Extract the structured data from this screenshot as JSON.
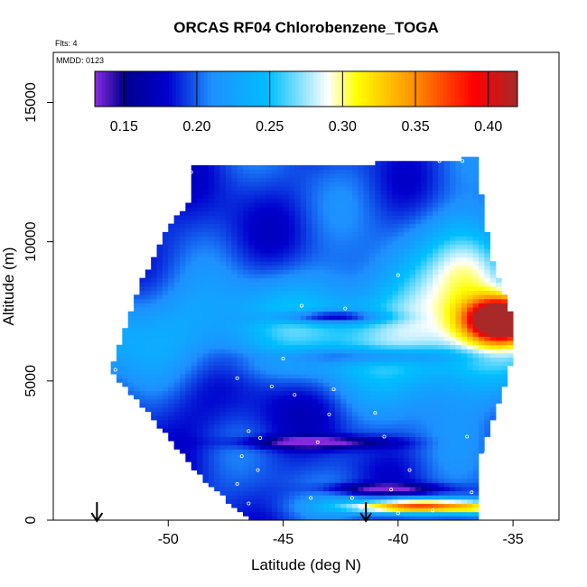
{
  "chart_data": {
    "type": "heatmap",
    "title": "ORCAS RF04 Chlorobenzene_TOGA",
    "annotations": {
      "flights": "Flts: 4",
      "date": "MMDD: 0123"
    },
    "xlabel": "Latitude (deg N)",
    "ylabel": "Altitude (m)",
    "xlim": [
      -55,
      -33
    ],
    "ylim": [
      0,
      16800
    ],
    "xticks": [
      -50,
      -45,
      -40,
      -35
    ],
    "xtick_labels": [
      "-50",
      "-45",
      "-40",
      "-35"
    ],
    "yticks": [
      0,
      5000,
      10000,
      15000
    ],
    "ytick_labels": [
      "0",
      "5000",
      "10000",
      "15000"
    ],
    "colorbar": {
      "range": [
        0.13,
        0.42
      ],
      "ticks": [
        0.15,
        0.2,
        0.25,
        0.3,
        0.35,
        0.4
      ],
      "tick_labels": [
        "0.15",
        "0.20",
        "0.25",
        "0.30",
        "0.35",
        "0.40"
      ],
      "colors": [
        "#8a2be2",
        "#00008b",
        "#0000cd",
        "#1e90ff",
        "#00bfff",
        "#ffffff",
        "#ffff00",
        "#ff8c00",
        "#ff0000",
        "#a52a2a"
      ],
      "stops": [
        0.13,
        0.15,
        0.18,
        0.21,
        0.25,
        0.29,
        0.31,
        0.35,
        0.39,
        0.42
      ]
    },
    "arrows_latitude": [
      -53.1,
      -41.4
    ],
    "samples": [
      [
        -52.3,
        5400
      ],
      [
        -49.0,
        12500
      ],
      [
        -44.2,
        7700
      ],
      [
        -42.3,
        7600
      ],
      [
        -45.0,
        5800
      ],
      [
        -47.0,
        5100
      ],
      [
        -45.5,
        4800
      ],
      [
        -44.5,
        4500
      ],
      [
        -42.8,
        4700
      ],
      [
        -43.0,
        3800
      ],
      [
        -41.0,
        3850
      ],
      [
        -40.0,
        8800
      ],
      [
        -38.2,
        12900
      ],
      [
        -37.2,
        12900
      ],
      [
        -35.4,
        6100
      ],
      [
        -37.0,
        3000
      ],
      [
        -36.2,
        2400
      ],
      [
        -39.5,
        1800
      ],
      [
        -40.3,
        1100
      ],
      [
        -36.8,
        1000
      ],
      [
        -46.5,
        3200
      ],
      [
        -46.0,
        2950
      ],
      [
        -43.5,
        2800
      ],
      [
        -40.6,
        3000
      ],
      [
        -46.8,
        2300
      ],
      [
        -46.1,
        1800
      ],
      [
        -47.0,
        1300
      ],
      [
        -46.5,
        600
      ],
      [
        -43.8,
        800
      ],
      [
        -42.0,
        800
      ],
      [
        -41.6,
        450
      ],
      [
        -40.0,
        250
      ],
      [
        -38.5,
        350
      ]
    ]
  }
}
